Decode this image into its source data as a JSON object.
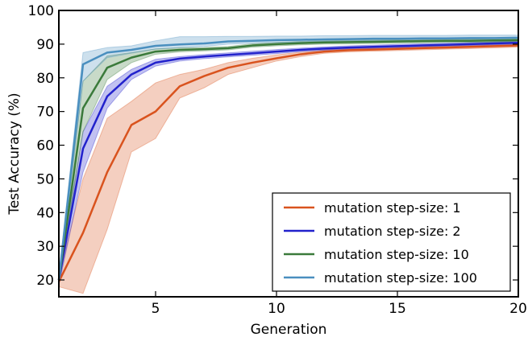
{
  "chart_data": {
    "type": "line",
    "title": "",
    "xlabel": "Generation",
    "ylabel": "Test Accuracy (%)",
    "xlim": [
      1,
      20
    ],
    "ylim": [
      15,
      100
    ],
    "xticks": [
      5,
      10,
      15,
      20
    ],
    "yticks": [
      20,
      30,
      40,
      50,
      60,
      70,
      80,
      90,
      100
    ],
    "grid": false,
    "legend_position": "bottom-right",
    "x": [
      1,
      2,
      3,
      4,
      5,
      6,
      7,
      8,
      9,
      10,
      11,
      12,
      13,
      14,
      15,
      16,
      17,
      18,
      19,
      20
    ],
    "series": [
      {
        "name": "mutation step-size: 1",
        "color": "#d9531e",
        "values": [
          19.5,
          34,
          52,
          66,
          70,
          77.5,
          80.5,
          83,
          84.5,
          85.8,
          87,
          87.8,
          88.2,
          88.4,
          88.6,
          88.8,
          89,
          89.2,
          89.4,
          89.6
        ],
        "lower": [
          18,
          16,
          35,
          58,
          62,
          74,
          77,
          81,
          83,
          85,
          86.3,
          87.3,
          87.7,
          87.9,
          88.1,
          88.3,
          88.5,
          88.7,
          88.9,
          89.1
        ],
        "upper": [
          21,
          50,
          68,
          73,
          78.5,
          81,
          82.5,
          84.5,
          85.8,
          86.8,
          87.6,
          88.3,
          88.7,
          88.9,
          89.1,
          89.3,
          89.5,
          89.7,
          89.9,
          90.1
        ]
      },
      {
        "name": "mutation step-size: 2",
        "color": "#2222cc",
        "values": [
          20,
          59,
          74.5,
          81,
          84.5,
          85.7,
          86.3,
          86.8,
          87.3,
          87.8,
          88.3,
          88.7,
          89,
          89.2,
          89.4,
          89.6,
          89.8,
          90,
          90.2,
          90.4
        ],
        "lower": [
          18.5,
          52,
          71,
          79.5,
          83.5,
          85,
          85.7,
          86.2,
          86.7,
          87.2,
          87.8,
          88.2,
          88.5,
          88.7,
          88.9,
          89.1,
          89.3,
          89.5,
          89.7,
          89.9
        ],
        "upper": [
          21.5,
          64,
          77.5,
          82.5,
          85.5,
          86.3,
          86.9,
          87.4,
          87.9,
          88.4,
          88.8,
          89.2,
          89.5,
          89.7,
          89.9,
          90.1,
          90.3,
          90.5,
          90.7,
          90.9
        ]
      },
      {
        "name": "mutation step-size: 10",
        "color": "#3a7a3a",
        "values": [
          20,
          71,
          83,
          86,
          87.8,
          88.3,
          88.5,
          88.8,
          89.6,
          90,
          90.3,
          90.5,
          90.6,
          90.7,
          90.8,
          90.9,
          91,
          91,
          91.1,
          91.2
        ],
        "lower": [
          18.5,
          64,
          79.5,
          84.5,
          87,
          87.7,
          88,
          88.3,
          89.1,
          89.5,
          89.8,
          90,
          90.1,
          90.2,
          90.3,
          90.4,
          90.5,
          90.5,
          90.6,
          90.7
        ],
        "upper": [
          21.5,
          79,
          86.5,
          87.5,
          88.6,
          88.9,
          89,
          89.3,
          90.1,
          90.5,
          90.8,
          91,
          91.1,
          91.2,
          91.3,
          91.4,
          91.5,
          91.5,
          91.6,
          91.7
        ]
      },
      {
        "name": "mutation step-size: 100",
        "color": "#4a8fbf",
        "values": [
          20,
          84,
          87.5,
          88.3,
          89.5,
          89.9,
          90.2,
          90.8,
          91,
          91.2,
          91.3,
          91.4,
          91.5,
          91.6,
          91.6,
          91.7,
          91.7,
          91.8,
          91.8,
          91.9
        ],
        "lower": [
          18.5,
          79,
          86,
          87.3,
          88.5,
          89,
          89.3,
          90,
          90.3,
          90.5,
          90.6,
          90.8,
          90.9,
          91,
          91,
          91.1,
          91.1,
          91.2,
          91.2,
          91.3
        ],
        "upper": [
          21.5,
          87.5,
          89,
          89.5,
          91,
          92.2,
          92.2,
          92.3,
          92.3,
          92.4,
          92.4,
          92.5,
          92.5,
          92.6,
          92.6,
          92.6,
          92.6,
          92.7,
          92.7,
          92.7
        ]
      }
    ]
  }
}
